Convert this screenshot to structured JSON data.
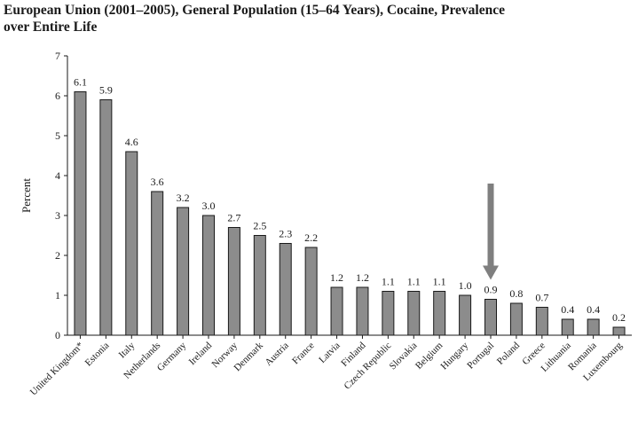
{
  "chart_data": {
    "type": "bar",
    "title_line1": "European Union (2001–2005), General Population (15–64 Years), Cocaine, Prevalence",
    "title_line2": "over Entire Life",
    "ylabel": "Percent",
    "ylim": [
      0,
      7
    ],
    "yticks": [
      "0",
      "1",
      "2",
      "3",
      "4",
      "5",
      "6",
      "7"
    ],
    "categories": [
      "United Kingdom*",
      "Estonia",
      "Italy",
      "Netherlands",
      "Germany",
      "Ireland",
      "Norway",
      "Denmark",
      "Austria",
      "France",
      "Latvia",
      "Finland",
      "Czech Republic",
      "Slovakia",
      "Belgium",
      "Hungary",
      "Portugal",
      "Poland",
      "Greece",
      "Lithuania",
      "Romania",
      "Luxembourg"
    ],
    "values": [
      6.1,
      5.9,
      4.6,
      3.6,
      3.2,
      3.0,
      2.7,
      2.5,
      2.3,
      2.2,
      1.2,
      1.2,
      1.1,
      1.1,
      1.1,
      1.0,
      0.9,
      0.8,
      0.7,
      0.4,
      0.4,
      0.2
    ],
    "value_labels": [
      "6.1",
      "5.9",
      "4.6",
      "3.6",
      "3.2",
      "3.0",
      "2.7",
      "2.5",
      "2.3",
      "2.2",
      "1.2",
      "1.2",
      "1.1",
      "1.1",
      "1.1",
      "1.0",
      "0.9",
      "0.8",
      "0.7",
      "0.4",
      "0.4",
      "0.2"
    ],
    "highlight_category": "Portugal",
    "grid": false,
    "bar_color": "#8c8c8c",
    "arrow_color": "#7f7f7f"
  }
}
